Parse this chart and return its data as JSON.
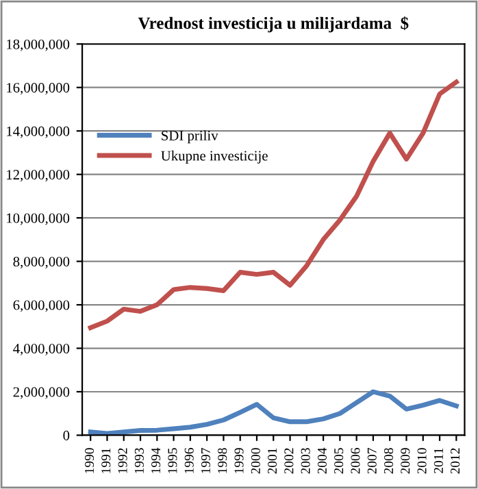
{
  "chart_data": {
    "type": "line",
    "title": "Vrednost investicija u milijardama  $",
    "categories": [
      "1990",
      "1991",
      "1992",
      "1993",
      "1994",
      "1995",
      "1996",
      "1997",
      "1998",
      "1999",
      "2000",
      "2001",
      "2002",
      "2003",
      "2004",
      "2005",
      "2006",
      "2007",
      "2008",
      "2009",
      "2010",
      "2011",
      "2012"
    ],
    "series": [
      {
        "name": "SDI priliv",
        "color": "#4f81bd",
        "values": [
          150000,
          80000,
          150000,
          220000,
          230000,
          300000,
          370000,
          500000,
          700000,
          1050000,
          1420000,
          800000,
          620000,
          620000,
          750000,
          1000000,
          1500000,
          2000000,
          1800000,
          1200000,
          1380000,
          1600000,
          1350000
        ]
      },
      {
        "name": "Ukupne investicije",
        "color": "#c0504d",
        "values": [
          4950000,
          5250000,
          5800000,
          5700000,
          6000000,
          6700000,
          6800000,
          6750000,
          6650000,
          7500000,
          7400000,
          7500000,
          6900000,
          7800000,
          9000000,
          9900000,
          11000000,
          12600000,
          13900000,
          12700000,
          13900000,
          15700000,
          16250000
        ]
      }
    ],
    "ylim": [
      0,
      18000000
    ],
    "yticks": [
      {
        "value": 0,
        "label": "0"
      },
      {
        "value": 2000000,
        "label": "2,000,000"
      },
      {
        "value": 4000000,
        "label": "4,000,000"
      },
      {
        "value": 6000000,
        "label": "6,000,000"
      },
      {
        "value": 8000000,
        "label": "8,000,000"
      },
      {
        "value": 10000000,
        "label": "10,000,000"
      },
      {
        "value": 12000000,
        "label": "12,000,000"
      },
      {
        "value": 14000000,
        "label": "14,000,000"
      },
      {
        "value": 16000000,
        "label": "16,000,000"
      },
      {
        "value": 18000000,
        "label": "18,000,000"
      }
    ],
    "grid": "y",
    "legend": "top left",
    "marker": "none",
    "line_style": "solid"
  }
}
